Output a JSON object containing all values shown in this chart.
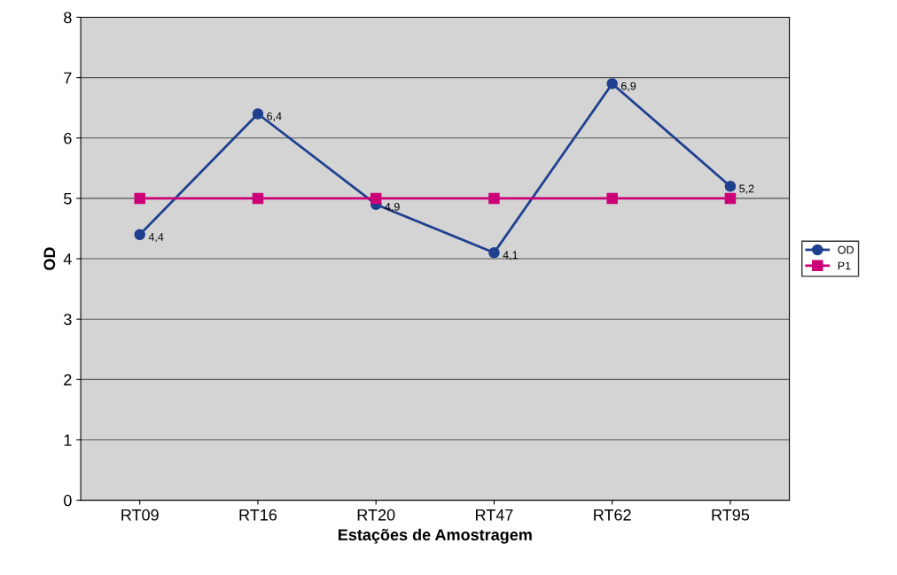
{
  "chart_data": {
    "type": "line",
    "xlabel": "Estações de Amostragem",
    "ylabel": "OD",
    "categories": [
      "RT09",
      "RT16",
      "RT20",
      "RT47",
      "RT62",
      "RT95"
    ],
    "series": [
      {
        "name": "OD",
        "color": "#1f3f8f",
        "values": [
          4.4,
          6.4,
          4.9,
          4.1,
          6.9,
          5.2
        ],
        "marker": "circle",
        "value_labels": [
          "4,4",
          "6,4",
          "4,9",
          "4,1",
          "6,9",
          "5,2"
        ]
      },
      {
        "name": "P1",
        "color": "#cc0077",
        "values": [
          5,
          5,
          5,
          5,
          5,
          5
        ],
        "marker": "square"
      }
    ],
    "ylim": [
      0,
      8
    ],
    "yticks": [
      0,
      1,
      2,
      3,
      4,
      5,
      6,
      7,
      8
    ],
    "grid": "y",
    "legend": "right"
  }
}
